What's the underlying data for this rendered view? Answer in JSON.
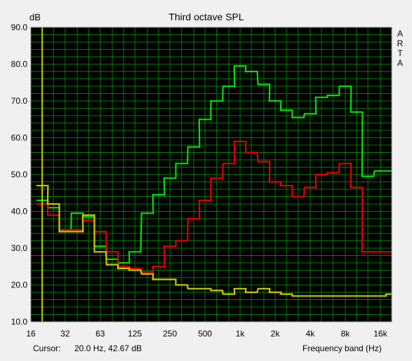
{
  "window": {
    "title": "Third octave SPL",
    "brand_letters": [
      "A",
      "R",
      "T",
      "A"
    ]
  },
  "footer": {
    "cursor_label": "Cursor:",
    "cursor_value": "20.0 Hz, 42.67 dB",
    "frequency_label": "Frequency band (Hz)"
  },
  "colors": {
    "background": "#f0f0f0",
    "plot_background": "#000000",
    "grid": "#007f00",
    "cursor_line": "#c8c800",
    "green": "#00e000",
    "red": "#e00000",
    "yellow": "#c8c800"
  },
  "chart_data": {
    "type": "line",
    "title": "Third octave SPL",
    "ylabel": "dB",
    "xlabel": "Frequency band (Hz)",
    "ylim": [
      10.0,
      90.0
    ],
    "yticks": [
      "90.0",
      "80.0",
      "70.0",
      "60.0",
      "50.0",
      "40.0",
      "30.0",
      "20.0",
      "10.0"
    ],
    "xticks": [
      "16",
      "32",
      "63",
      "125",
      "250",
      "500",
      "1k",
      "2k",
      "4k",
      "8k",
      "16k"
    ],
    "x_scale": "log",
    "x_range_bands": [
      16,
      20000
    ],
    "grid": true,
    "cursor_hz": 20,
    "categories": [
      "20",
      "25",
      "31.5",
      "40",
      "50",
      "63",
      "80",
      "100",
      "125",
      "160",
      "200",
      "250",
      "315",
      "400",
      "500",
      "630",
      "800",
      "1000",
      "1250",
      "1600",
      "2000",
      "2500",
      "3150",
      "4000",
      "5000",
      "6300",
      "8000",
      "10000",
      "12500",
      "16000",
      "20000"
    ],
    "series": [
      {
        "color": "green",
        "values": [
          43.0,
          41.0,
          35.0,
          39.5,
          38.5,
          30.5,
          27.0,
          26.0,
          29.0,
          39.5,
          44.5,
          49.0,
          53.0,
          57.5,
          65.0,
          70.0,
          74.0,
          79.5,
          78.0,
          74.5,
          70.0,
          67.5,
          65.5,
          66.5,
          71.0,
          71.5,
          74.0,
          67.0,
          49.5,
          51.0,
          51.0
        ]
      },
      {
        "color": "red",
        "values": [
          42.0,
          39.0,
          35.0,
          35.0,
          37.5,
          34.5,
          29.0,
          25.0,
          24.5,
          23.5,
          25.0,
          30.5,
          32.0,
          38.0,
          43.0,
          49.0,
          53.0,
          59.0,
          56.0,
          53.5,
          48.0,
          47.0,
          44.0,
          46.5,
          50.0,
          50.5,
          53.0,
          46.5,
          29.0,
          29.0,
          29.0
        ]
      },
      {
        "color": "yellow",
        "values": [
          47.0,
          42.0,
          34.5,
          34.5,
          39.0,
          29.0,
          25.5,
          24.5,
          24.0,
          23.0,
          21.5,
          21.5,
          20.0,
          19.0,
          19.0,
          18.5,
          17.5,
          19.0,
          18.0,
          19.0,
          18.0,
          17.5,
          17.0,
          17.0,
          17.0,
          17.0,
          17.0,
          17.0,
          17.0,
          17.0,
          17.5
        ]
      }
    ]
  }
}
